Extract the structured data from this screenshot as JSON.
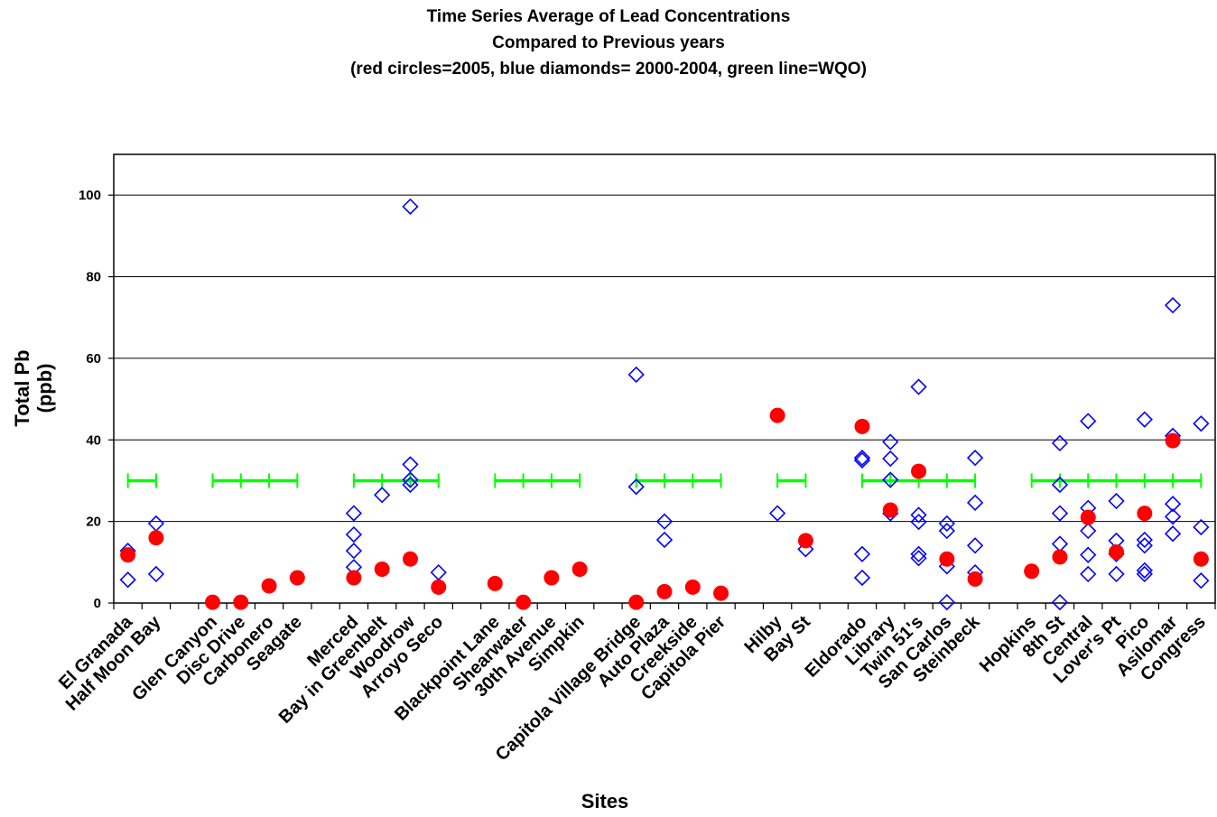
{
  "chart_data": {
    "type": "scatter",
    "title_lines": [
      "Time Series Average of Lead Concentrations",
      "Compared to Previous years",
      "(red circles=2005, blue diamonds= 2000-2004, green line=WQO)"
    ],
    "xlabel": "Sites",
    "ylabel_lines": [
      "Total Pb",
      "(ppb)"
    ],
    "ylim": [
      0,
      110
    ],
    "yticks": [
      0,
      20,
      40,
      60,
      80,
      100
    ],
    "grid": "horizontal",
    "categories": [
      "El Granada",
      "Half Moon Bay",
      "",
      "Glen Canyon",
      "Disc Drive",
      "Carbonero",
      "Seagate",
      "",
      "Merced",
      "Bay in Greenbelt",
      "Woodrow",
      "Arroyo Seco",
      "",
      "Blackpoint Lane",
      "Shearwater",
      "30th Avenue",
      "Simpkin",
      "",
      "Capitola Village Bridge",
      "Auto Plaza",
      "Creekside",
      "Capitola Pier",
      "",
      "Hilby",
      "Bay St",
      "",
      "Eldorado",
      "Library",
      "Twin 51's",
      "San Carlos",
      "Steinbeck",
      "",
      "Hopkins",
      "8th St",
      "Central",
      "Lover's Pt",
      "Pico",
      "Asilomar",
      "Congress"
    ],
    "colors": {
      "2005": "#ff0000",
      "2000-2004": "#0000ff",
      "WQO": "#00ff00"
    },
    "series": [
      {
        "name": "red circles=2005",
        "marker": "circle",
        "points": [
          [
            0,
            11.8
          ],
          [
            1,
            16.0
          ],
          [
            3,
            0.2
          ],
          [
            4,
            0.2
          ],
          [
            5,
            4.2
          ],
          [
            6,
            6.2
          ],
          [
            8,
            6.2
          ],
          [
            9,
            8.3
          ],
          [
            10,
            10.8
          ],
          [
            11,
            3.9
          ],
          [
            13,
            4.8
          ],
          [
            14,
            0.2
          ],
          [
            15,
            6.2
          ],
          [
            16,
            8.3
          ],
          [
            18,
            0.2
          ],
          [
            19,
            2.8
          ],
          [
            20,
            3.9
          ],
          [
            21,
            2.4
          ],
          [
            23,
            46.0
          ],
          [
            24,
            15.3
          ],
          [
            26,
            43.3
          ],
          [
            27,
            22.8
          ],
          [
            28,
            32.3
          ],
          [
            29,
            10.8
          ],
          [
            30,
            5.9
          ],
          [
            32,
            7.8
          ],
          [
            33,
            11.3
          ],
          [
            34,
            21.0
          ],
          [
            35,
            12.5
          ],
          [
            36,
            22.0
          ],
          [
            37,
            39.8
          ],
          [
            38,
            10.8
          ]
        ]
      },
      {
        "name": "blue diamonds= 2000-2004",
        "marker": "diamond",
        "points": [
          [
            0,
            12.8
          ],
          [
            0,
            5.7
          ],
          [
            1,
            19.5
          ],
          [
            1,
            7.1
          ],
          [
            8,
            22.0
          ],
          [
            8,
            16.8
          ],
          [
            8,
            12.8
          ],
          [
            8,
            8.8
          ],
          [
            9,
            26.5
          ],
          [
            10,
            97.2
          ],
          [
            10,
            34.0
          ],
          [
            10,
            30.2
          ],
          [
            10,
            29.0
          ],
          [
            11,
            7.5
          ],
          [
            18,
            56.0
          ],
          [
            18,
            28.5
          ],
          [
            19,
            20.0
          ],
          [
            19,
            15.5
          ],
          [
            23,
            22.0
          ],
          [
            24,
            13.2
          ],
          [
            26,
            35.6
          ],
          [
            26,
            35.0
          ],
          [
            26,
            12.0
          ],
          [
            26,
            6.2
          ],
          [
            27,
            39.5
          ],
          [
            27,
            35.4
          ],
          [
            27,
            30.2
          ],
          [
            27,
            22.0
          ],
          [
            28,
            53.0
          ],
          [
            28,
            21.6
          ],
          [
            28,
            19.9
          ],
          [
            28,
            12.0
          ],
          [
            28,
            11.0
          ],
          [
            29,
            19.5
          ],
          [
            29,
            17.7
          ],
          [
            29,
            9.0
          ],
          [
            29,
            0.2
          ],
          [
            30,
            35.6
          ],
          [
            30,
            24.6
          ],
          [
            30,
            14.1
          ],
          [
            30,
            7.5
          ],
          [
            33,
            39.2
          ],
          [
            33,
            29.0
          ],
          [
            33,
            22.0
          ],
          [
            33,
            14.5
          ],
          [
            33,
            0.2
          ],
          [
            34,
            44.6
          ],
          [
            34,
            23.3
          ],
          [
            34,
            17.7
          ],
          [
            34,
            11.8
          ],
          [
            34,
            7.1
          ],
          [
            35,
            25.0
          ],
          [
            35,
            15.3
          ],
          [
            35,
            12.0
          ],
          [
            35,
            7.1
          ],
          [
            36,
            45.0
          ],
          [
            36,
            15.5
          ],
          [
            36,
            14.1
          ],
          [
            36,
            8.0
          ],
          [
            36,
            7.1
          ],
          [
            37,
            73.0
          ],
          [
            37,
            41.0
          ],
          [
            37,
            24.3
          ],
          [
            37,
            21.2
          ],
          [
            37,
            17.0
          ],
          [
            38,
            44.0
          ],
          [
            38,
            18.6
          ],
          [
            38,
            5.5
          ]
        ]
      },
      {
        "name": "green line=WQO",
        "marker": "line-plus",
        "value": 30,
        "segments": [
          [
            0,
            1
          ],
          [
            3,
            6
          ],
          [
            8,
            11
          ],
          [
            13,
            16
          ],
          [
            18,
            21
          ],
          [
            23,
            24
          ],
          [
            26,
            30
          ],
          [
            32,
            38
          ]
        ]
      }
    ]
  }
}
